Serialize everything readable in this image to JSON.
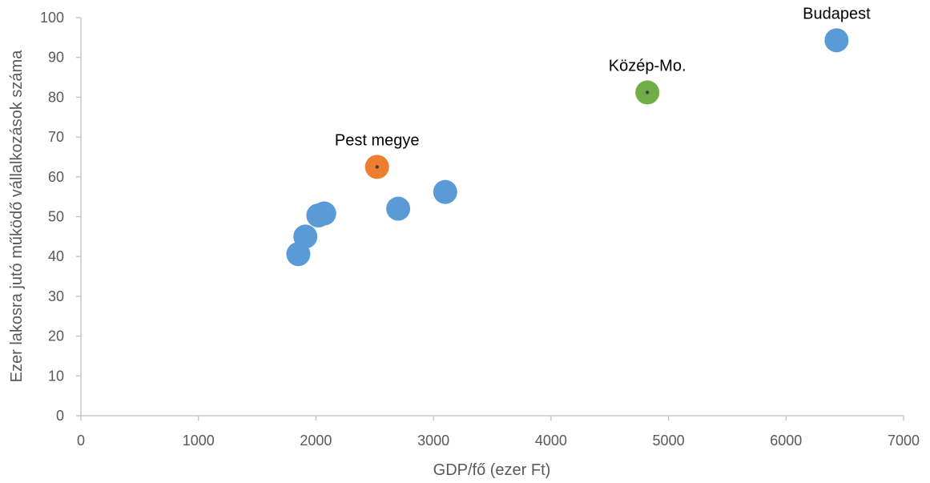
{
  "chart_data": {
    "type": "scatter",
    "title": "",
    "xlabel": "GDP/fő (ezer Ft)",
    "ylabel": "Ezer lakosra jutó működő vállalkozások száma",
    "xlim": [
      0,
      7000
    ],
    "ylim": [
      0,
      100
    ],
    "x_ticks": [
      0,
      1000,
      2000,
      3000,
      4000,
      5000,
      6000,
      7000
    ],
    "y_ticks": [
      0,
      10,
      20,
      30,
      40,
      50,
      60,
      70,
      80,
      90,
      100
    ],
    "grid": false,
    "legend": "none",
    "colors": {
      "default": "#5B9BD5",
      "pest": "#ED7D31",
      "kozep": "#70AD47",
      "axis": "#BFBFBF",
      "tick_text": "#595959",
      "center_dot": "#404040"
    },
    "points": [
      {
        "x": 6430,
        "y": 94.3,
        "label": "Budapest",
        "color": "default",
        "center_dot": false
      },
      {
        "x": 4820,
        "y": 81.2,
        "label": "Közép-Mo.",
        "color": "kozep",
        "center_dot": true
      },
      {
        "x": 2520,
        "y": 62.5,
        "label": "Pest megye",
        "color": "pest",
        "center_dot": true
      },
      {
        "x": 3100,
        "y": 56.2,
        "label": "",
        "color": "default",
        "center_dot": false
      },
      {
        "x": 2700,
        "y": 52.0,
        "label": "",
        "color": "default",
        "center_dot": false
      },
      {
        "x": 2070,
        "y": 50.8,
        "label": "",
        "color": "default",
        "center_dot": false
      },
      {
        "x": 2020,
        "y": 50.3,
        "label": "",
        "color": "default",
        "center_dot": false
      },
      {
        "x": 1910,
        "y": 45.0,
        "label": "",
        "color": "default",
        "center_dot": false
      },
      {
        "x": 1850,
        "y": 40.6,
        "label": "",
        "color": "default",
        "center_dot": false
      }
    ]
  }
}
